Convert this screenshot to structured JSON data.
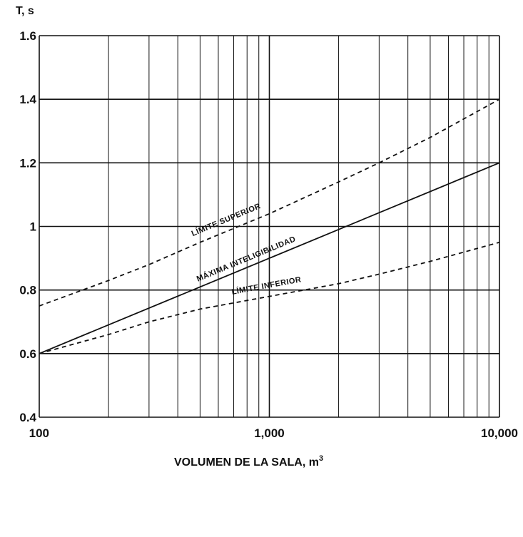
{
  "chart_data": {
    "type": "line",
    "xscale": "log",
    "xlim": [
      100,
      10000
    ],
    "ylim": [
      0.4,
      1.6
    ],
    "ylabel": "T, s",
    "xlabel": "VOLUMEN DE LA SALA, m",
    "xlabel_superscript": "3",
    "x_ticks": [
      {
        "value": 100,
        "label": "100"
      },
      {
        "value": 1000,
        "label": "1,000"
      },
      {
        "value": 10000,
        "label": "10,000"
      }
    ],
    "y_ticks": [
      {
        "value": 0.4,
        "label": "0.4"
      },
      {
        "value": 0.6,
        "label": "0.6"
      },
      {
        "value": 0.8,
        "label": "0.8"
      },
      {
        "value": 1.0,
        "label": "1"
      },
      {
        "value": 1.2,
        "label": "1.2"
      },
      {
        "value": 1.4,
        "label": "1.4"
      },
      {
        "value": 1.6,
        "label": "1.6"
      }
    ],
    "grid": true,
    "series": [
      {
        "name": "LÍMITE SUPERIOR",
        "style": "dashed",
        "x": [
          100,
          200,
          300,
          500,
          1000,
          2000,
          3000,
          5000,
          10000
        ],
        "y": [
          0.75,
          0.83,
          0.88,
          0.95,
          1.04,
          1.14,
          1.2,
          1.28,
          1.4
        ]
      },
      {
        "name": "MÁXIMA INTELIGIBILIDAD",
        "style": "solid",
        "x": [
          100,
          1000,
          10000
        ],
        "y": [
          0.6,
          0.9,
          1.2
        ]
      },
      {
        "name": "LÍMITE INFERIOR",
        "style": "dashed",
        "x": [
          100,
          200,
          300,
          500,
          1000,
          2000,
          3000,
          5000,
          10000
        ],
        "y": [
          0.6,
          0.66,
          0.7,
          0.74,
          0.78,
          0.82,
          0.85,
          0.89,
          0.95
        ]
      }
    ]
  },
  "colors": {
    "line": "#111111",
    "grid": "#111111",
    "background": "#ffffff"
  }
}
